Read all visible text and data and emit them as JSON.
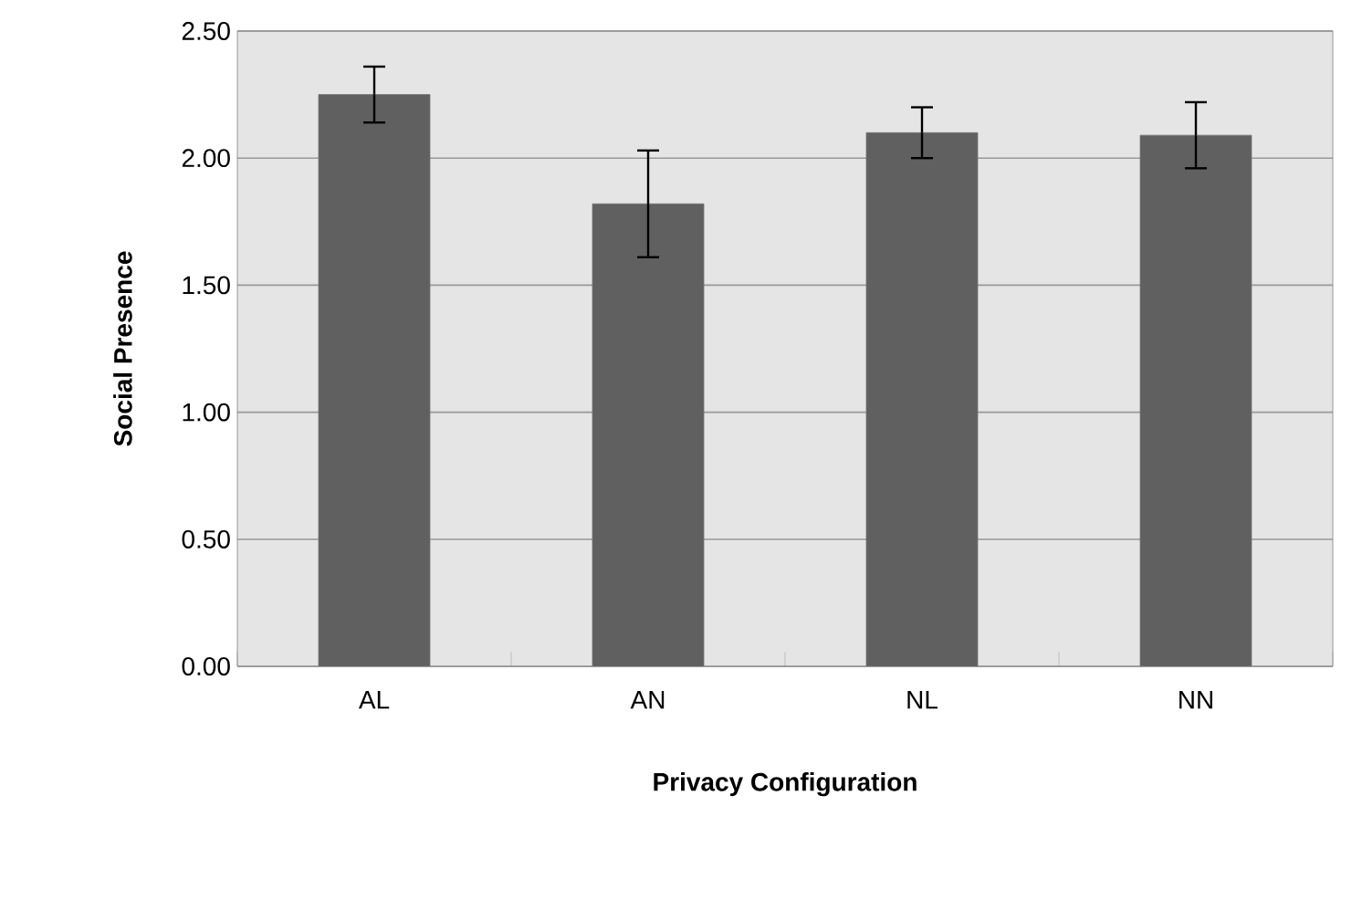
{
  "chart_data": {
    "type": "bar",
    "xlabel": "Privacy Configuration",
    "ylabel": "Social Presence",
    "categories": [
      "AL",
      "AN",
      "NL",
      "NN"
    ],
    "values": [
      2.25,
      1.82,
      2.1,
      2.09
    ],
    "errors": [
      0.11,
      0.21,
      0.1,
      0.13
    ],
    "color": "#606060",
    "ylim": [
      0,
      2.5
    ],
    "yticks": [
      {
        "value": 0,
        "label": "0.00"
      },
      {
        "value": 0.5,
        "label": "0.50"
      },
      {
        "value": 1,
        "label": "1.00"
      },
      {
        "value": 1.5,
        "label": "1.50"
      },
      {
        "value": 2,
        "label": "2.00"
      },
      {
        "value": 2.5,
        "label": "2.50"
      }
    ],
    "grid": "y"
  }
}
